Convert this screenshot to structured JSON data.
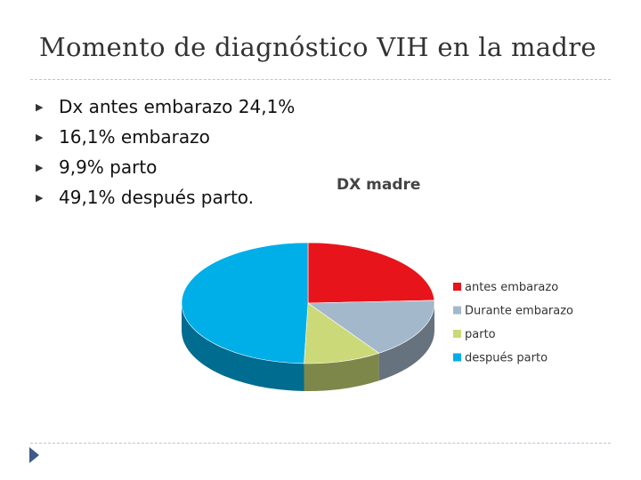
{
  "slide": {
    "title": "Momento de diagnóstico VIH en la madre",
    "bullets": [
      "Dx antes embarazo 24,1%",
      "16,1% embarazo",
      "9,9% parto",
      "49,1% después parto."
    ]
  },
  "chart_data": {
    "type": "pie",
    "title": "DX madre",
    "categories": [
      "antes embarazo",
      "Durante embarazo",
      "parto",
      "después parto"
    ],
    "values": [
      24.1,
      16.1,
      9.9,
      49.1
    ],
    "colors": [
      "#e8141b",
      "#a4b8cc",
      "#ccd978",
      "#00aee8"
    ],
    "legend": "right",
    "style": "3d"
  }
}
